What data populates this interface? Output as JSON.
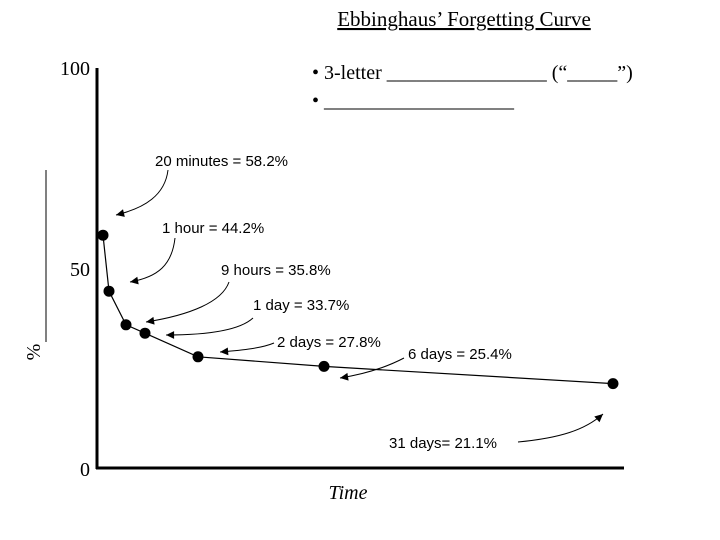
{
  "chart_data": {
    "type": "line",
    "title": "Ebbinghaus’ Forgetting Curve",
    "xlabel": "Time",
    "ylabel": "%",
    "ylim": [
      0,
      100
    ],
    "yticks": [
      {
        "value": 0,
        "label": "0"
      },
      {
        "value": 50,
        "label": "50"
      },
      {
        "value": 100,
        "label": "100"
      }
    ],
    "grid": false,
    "legend": "none",
    "bullets": [
      "• 3-letter ________________ (“_____”)",
      "• ___________________"
    ],
    "series": [
      {
        "points": [
          {
            "label": "20 minutes = 58.2%",
            "value": 58.2
          },
          {
            "label": "1 hour = 44.2%",
            "value": 44.2
          },
          {
            "label": "9 hours = 35.8%",
            "value": 35.8
          },
          {
            "label": "1 day = 33.7%",
            "value": 33.7
          },
          {
            "label": "2 days = 27.8%",
            "value": 27.8
          },
          {
            "label": "6 days = 25.4%",
            "value": 25.4
          },
          {
            "label": "31 days= 21.1%",
            "value": 21.1
          }
        ]
      }
    ],
    "colors": {
      "line": "#000000",
      "background": "#ffffff"
    }
  }
}
